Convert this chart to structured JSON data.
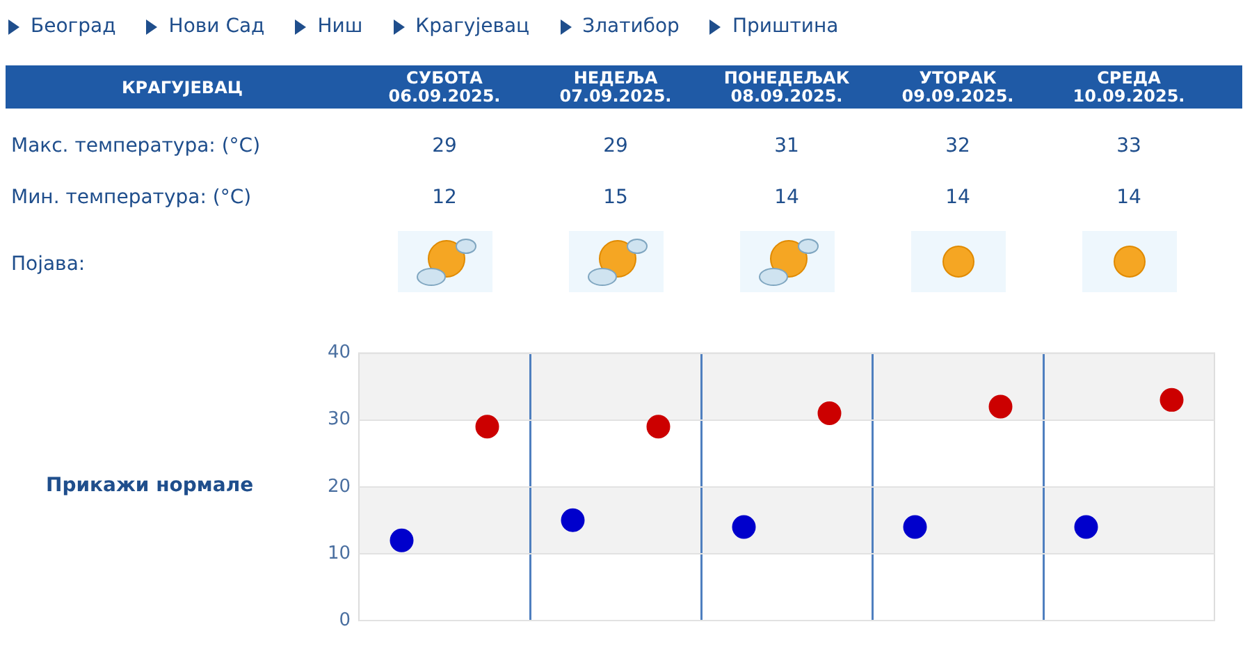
{
  "chart_data": {
    "type": "scatter",
    "title": "КРАГУЈЕВАЦ",
    "categories": [
      null,
      null,
      null,
      null,
      null
    ],
    "series": [
      {
        "color": "#0000cc",
        "values": [
          12,
          15,
          14,
          14,
          14
        ]
      },
      {
        "color": "#cc0000",
        "values": [
          29,
          29,
          31,
          32,
          33
        ]
      }
    ],
    "ylim": [
      0,
      40
    ],
    "yticks": [
      0,
      10,
      20,
      30,
      40
    ],
    "grid": true,
    "marker": "circle",
    "data_labels": true,
    "tick_labels": "y",
    "bands": [
      {
        "axis": "y",
        "from": 10,
        "to": 20,
        "color": "#f2f2f2"
      },
      {
        "axis": "y",
        "from": 30,
        "to": 40,
        "color": "#f2f2f2"
      }
    ],
    "annotations": [
      "Београд",
      "Нови Сад",
      "Ниш",
      "Крагујевац",
      "Златибор",
      "Приштина",
      "Појава:",
      "Прикажи нормале",
      "Мин. температура: (°C)",
      "Макс. температура: (°C)",
      "СУБОТА\n06.09.2025.",
      "НЕДЕЉА\n07.09.2025.",
      "ПОНЕДЕЉАК\n08.09.2025.",
      "УТОРАК\n09.09.2025.",
      "СРЕДА\n10.09.2025."
    ]
  }
}
